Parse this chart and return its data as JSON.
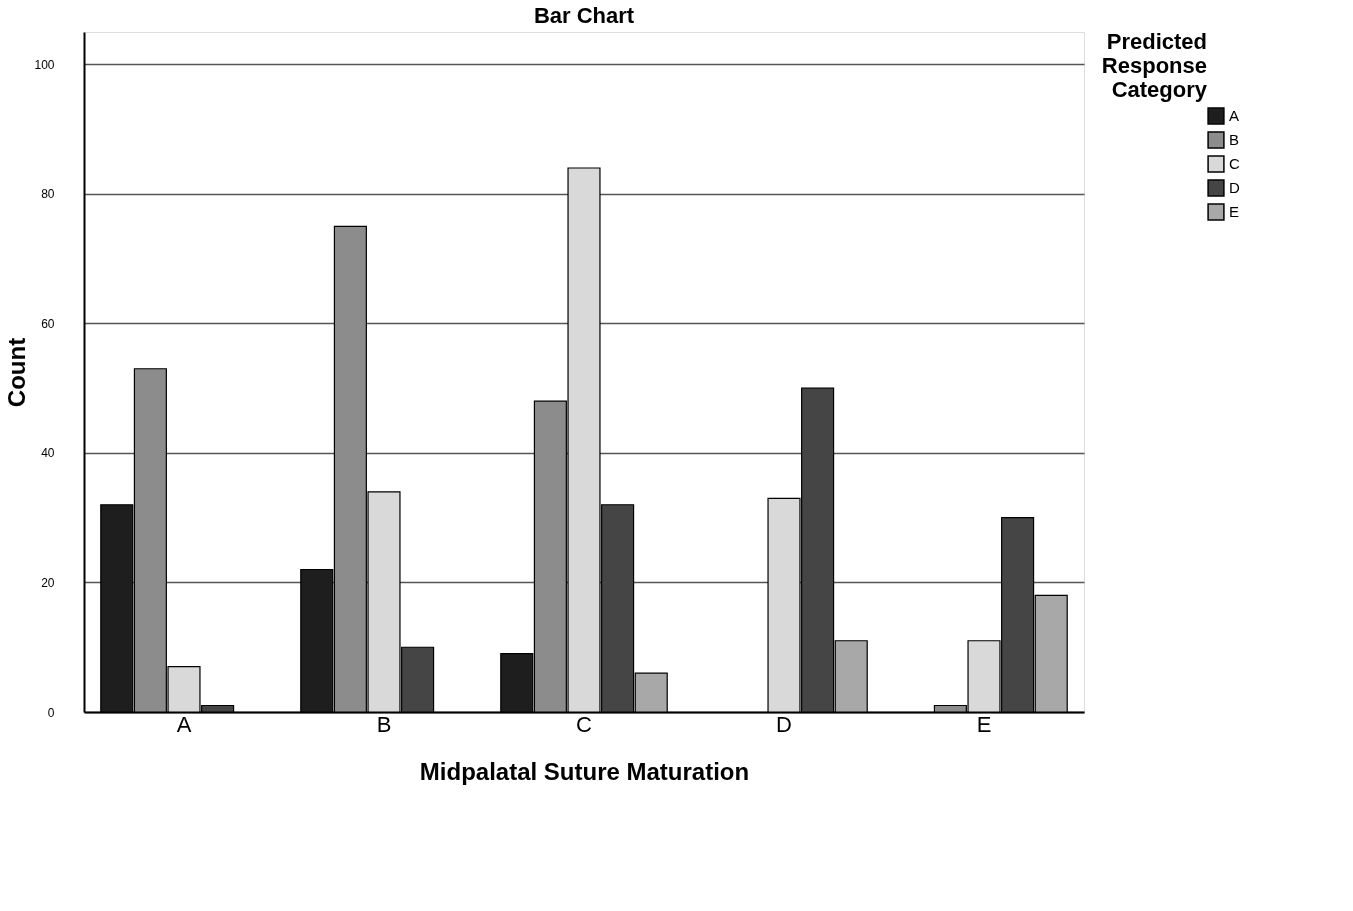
{
  "chart_data": {
    "type": "bar",
    "title": "Bar Chart",
    "xlabel": "Midpalatal Suture Maturation",
    "ylabel": "Count",
    "legend_title": "Predicted Response Category",
    "categories": [
      "A",
      "B",
      "C",
      "D",
      "E"
    ],
    "series": [
      {
        "name": "A",
        "color": "#1e1e1e",
        "values": [
          32,
          22,
          9,
          null,
          null
        ]
      },
      {
        "name": "B",
        "color": "#8c8c8c",
        "values": [
          53,
          75,
          48,
          null,
          1
        ]
      },
      {
        "name": "C",
        "color": "#d9d9d9",
        "values": [
          7,
          34,
          84,
          33,
          11
        ]
      },
      {
        "name": "D",
        "color": "#454545",
        "values": [
          1,
          10,
          32,
          50,
          30
        ]
      },
      {
        "name": "E",
        "color": "#a8a8a8",
        "values": [
          null,
          null,
          6,
          11,
          18
        ]
      }
    ],
    "ylim": [
      0,
      105
    ],
    "yticks": [
      0,
      20,
      40,
      60,
      80,
      100
    ],
    "grid": "y",
    "legend": "top right"
  }
}
